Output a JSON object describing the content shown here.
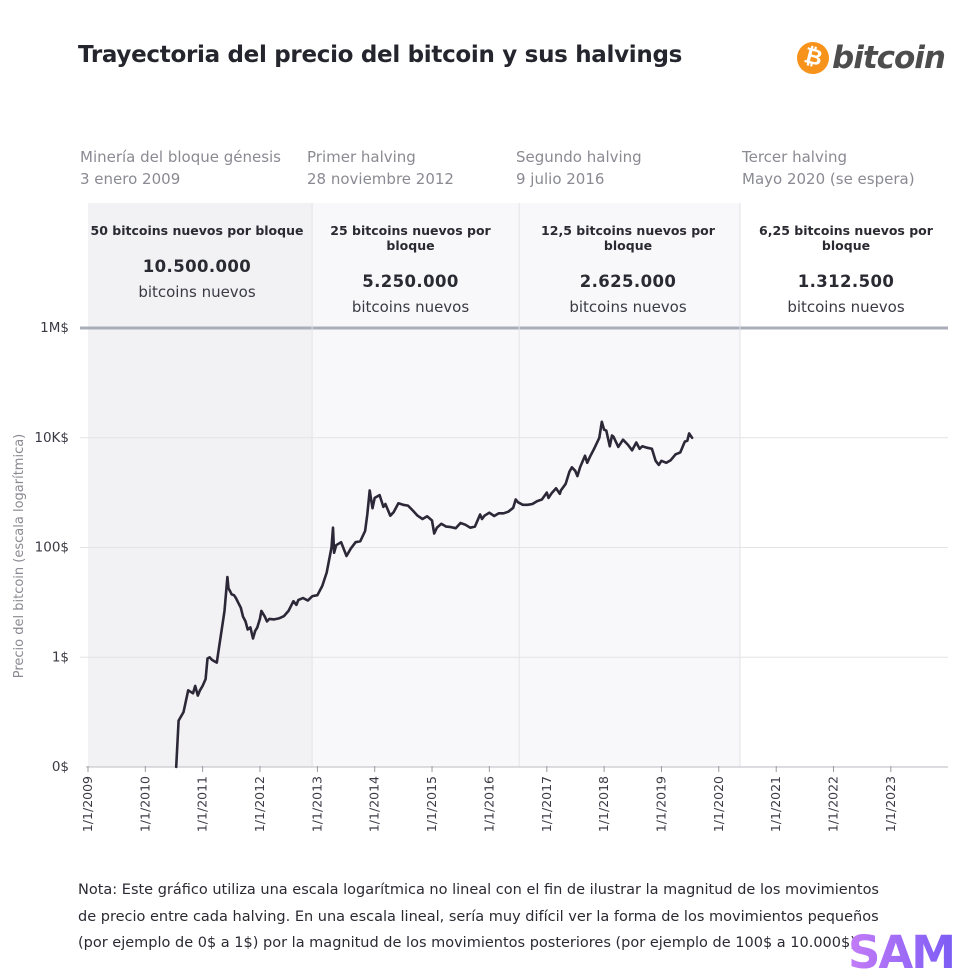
{
  "title": "Trayectoria del precio del bitcoin y sus halvings",
  "brand": {
    "icon_symbol": "₿",
    "wordmark": "bitcoin",
    "icon_color": "#f7931a",
    "icon": "bitcoin-logo-icon"
  },
  "eras": [
    {
      "event": "Minería del bloque génesis",
      "date": "3 enero 2009",
      "reward": "50 bitcoins nuevos por bloque",
      "amount": "10.500.000",
      "unit": "bitcoins nuevos",
      "shaded": true
    },
    {
      "event": "Primer halving",
      "date": "28 noviembre 2012",
      "reward": "25 bitcoins nuevos por bloque",
      "amount": "5.250.000",
      "unit": "bitcoins nuevos",
      "shaded": true
    },
    {
      "event": "Segundo halving",
      "date": "9 julio 2016",
      "reward": "12,5 bitcoins nuevos por bloque",
      "amount": "2.625.000",
      "unit": "bitcoins nuevos",
      "shaded": true
    },
    {
      "event": "Tercer halving",
      "date": "Mayo 2020 (se espera)",
      "reward": "6,25 bitcoins nuevos por bloque",
      "amount": "1.312.500",
      "unit": "bitcoins nuevos",
      "shaded": false
    }
  ],
  "colors": {
    "line": "#2d2838",
    "shade_dark": "#f2f2f4",
    "shade_light": "#f8f8fa",
    "grid": "#e3e3e8",
    "top_rule": "#a9aeba",
    "axis_text": "#8a8a93",
    "sam_logo": "#9b59f5"
  },
  "chart_data": {
    "type": "line",
    "title": "Trayectoria del precio del bitcoin y sus halvings",
    "ylabel": "Precio del bitcoin (escala logarítmica)",
    "xlabel": "",
    "y_scale": "log",
    "y_ticks": [
      {
        "value": 0.01,
        "label": "0$"
      },
      {
        "value": 1,
        "label": "1$"
      },
      {
        "value": 100,
        "label": "100$"
      },
      {
        "value": 10000,
        "label": "10K$"
      },
      {
        "value": 1000000,
        "label": "1M$"
      }
    ],
    "x_range": [
      "2009-01-01",
      "2023-12-31"
    ],
    "x_ticks": [
      "1/1/2009",
      "1/1/2010",
      "1/1/2011",
      "1/1/2012",
      "1/1/2013",
      "1/1/2014",
      "1/1/2015",
      "1/1/2016",
      "1/1/2017",
      "1/1/2018",
      "1/1/2019",
      "1/1/2020",
      "1/1/2021",
      "1/1/2022",
      "1/1/2023"
    ],
    "halving_dates": [
      "2012-11-28",
      "2016-07-09",
      "2020-05-15"
    ],
    "grid": true,
    "legend": "none",
    "series": [
      {
        "points": [
          [
            "2010-07-17",
            0.01
          ],
          [
            "2010-08-01",
            0.07
          ],
          [
            "2010-09-01",
            0.1
          ],
          [
            "2010-10-01",
            0.25
          ],
          [
            "2010-11-01",
            0.22
          ],
          [
            "2010-11-15",
            0.3
          ],
          [
            "2010-12-01",
            0.2
          ],
          [
            "2010-12-15",
            0.25
          ],
          [
            "2011-01-01",
            0.3
          ],
          [
            "2011-01-20",
            0.4
          ],
          [
            "2011-02-01",
            0.95
          ],
          [
            "2011-02-15",
            1.0
          ],
          [
            "2011-03-01",
            0.9
          ],
          [
            "2011-03-15",
            0.85
          ],
          [
            "2011-04-01",
            0.8
          ],
          [
            "2011-04-15",
            1.5
          ],
          [
            "2011-05-01",
            3.0
          ],
          [
            "2011-05-20",
            7.0
          ],
          [
            "2011-06-08",
            29.0
          ],
          [
            "2011-06-15",
            18.0
          ],
          [
            "2011-06-25",
            16.0
          ],
          [
            "2011-07-05",
            14.0
          ],
          [
            "2011-07-20",
            13.5
          ],
          [
            "2011-08-01",
            12.0
          ],
          [
            "2011-08-15",
            10.0
          ],
          [
            "2011-09-01",
            8.0
          ],
          [
            "2011-09-15",
            5.5
          ],
          [
            "2011-10-01",
            4.5
          ],
          [
            "2011-10-15",
            3.2
          ],
          [
            "2011-11-01",
            3.5
          ],
          [
            "2011-11-18",
            2.2
          ],
          [
            "2011-12-01",
            3.0
          ],
          [
            "2011-12-15",
            3.5
          ],
          [
            "2012-01-01",
            5.0
          ],
          [
            "2012-01-10",
            7.0
          ],
          [
            "2012-02-01",
            5.5
          ],
          [
            "2012-02-15",
            4.5
          ],
          [
            "2012-03-01",
            5.0
          ],
          [
            "2012-04-01",
            4.9
          ],
          [
            "2012-05-01",
            5.1
          ],
          [
            "2012-06-01",
            5.6
          ],
          [
            "2012-07-01",
            7.0
          ],
          [
            "2012-08-01",
            10.5
          ],
          [
            "2012-08-20",
            9.0
          ],
          [
            "2012-09-01",
            11.0
          ],
          [
            "2012-10-01",
            12.0
          ],
          [
            "2012-11-01",
            10.8
          ],
          [
            "2012-12-01",
            13.0
          ],
          [
            "2013-01-01",
            13.5
          ],
          [
            "2013-02-01",
            20.0
          ],
          [
            "2013-03-01",
            35.0
          ],
          [
            "2013-04-01",
            100.0
          ],
          [
            "2013-04-10",
            230.0
          ],
          [
            "2013-04-17",
            80.0
          ],
          [
            "2013-05-01",
            110.0
          ],
          [
            "2013-06-01",
            125.0
          ],
          [
            "2013-07-05",
            70.0
          ],
          [
            "2013-08-01",
            95.0
          ],
          [
            "2013-09-01",
            125.0
          ],
          [
            "2013-10-01",
            130.0
          ],
          [
            "2013-11-01",
            200.0
          ],
          [
            "2013-11-15",
            400.0
          ],
          [
            "2013-11-30",
            1100.0
          ],
          [
            "2013-12-18",
            520.0
          ],
          [
            "2014-01-01",
            800.0
          ],
          [
            "2014-02-01",
            900.0
          ],
          [
            "2014-02-25",
            550.0
          ],
          [
            "2014-03-10",
            620.0
          ],
          [
            "2014-04-10",
            380.0
          ],
          [
            "2014-05-01",
            440.0
          ],
          [
            "2014-06-01",
            640.0
          ],
          [
            "2014-07-01",
            600.0
          ],
          [
            "2014-08-01",
            580.0
          ],
          [
            "2014-09-01",
            470.0
          ],
          [
            "2014-10-01",
            380.0
          ],
          [
            "2014-11-01",
            330.0
          ],
          [
            "2014-12-01",
            370.0
          ],
          [
            "2015-01-01",
            310.0
          ],
          [
            "2015-01-15",
            180.0
          ],
          [
            "2015-02-01",
            230.0
          ],
          [
            "2015-03-01",
            270.0
          ],
          [
            "2015-04-01",
            240.0
          ],
          [
            "2015-05-01",
            235.0
          ],
          [
            "2015-06-01",
            225.0
          ],
          [
            "2015-07-01",
            280.0
          ],
          [
            "2015-08-01",
            260.0
          ],
          [
            "2015-09-01",
            230.0
          ],
          [
            "2015-10-01",
            240.0
          ],
          [
            "2015-11-03",
            400.0
          ],
          [
            "2015-11-15",
            330.0
          ],
          [
            "2015-12-01",
            380.0
          ],
          [
            "2016-01-01",
            430.0
          ],
          [
            "2016-02-01",
            375.0
          ],
          [
            "2016-03-01",
            420.0
          ],
          [
            "2016-04-01",
            420.0
          ],
          [
            "2016-05-01",
            450.0
          ],
          [
            "2016-06-01",
            530.0
          ],
          [
            "2016-06-17",
            750.0
          ],
          [
            "2016-07-01",
            670.0
          ],
          [
            "2016-08-01",
            600.0
          ],
          [
            "2016-09-01",
            600.0
          ],
          [
            "2016-10-01",
            620.0
          ],
          [
            "2016-11-01",
            700.0
          ],
          [
            "2016-12-01",
            750.0
          ],
          [
            "2017-01-01",
            1000.0
          ],
          [
            "2017-01-12",
            800.0
          ],
          [
            "2017-02-01",
            980.0
          ],
          [
            "2017-03-01",
            1200.0
          ],
          [
            "2017-03-25",
            950.0
          ],
          [
            "2017-04-01",
            1100.0
          ],
          [
            "2017-05-01",
            1450.0
          ],
          [
            "2017-05-25",
            2400.0
          ],
          [
            "2017-06-10",
            2900.0
          ],
          [
            "2017-07-01",
            2500.0
          ],
          [
            "2017-07-15",
            2000.0
          ],
          [
            "2017-08-01",
            2900.0
          ],
          [
            "2017-09-01",
            4700.0
          ],
          [
            "2017-09-15",
            3500.0
          ],
          [
            "2017-10-01",
            4400.0
          ],
          [
            "2017-11-01",
            6500.0
          ],
          [
            "2017-12-01",
            10000.0
          ],
          [
            "2017-12-17",
            19500.0
          ],
          [
            "2018-01-01",
            14000.0
          ],
          [
            "2018-01-15",
            13500.0
          ],
          [
            "2018-02-06",
            7000.0
          ],
          [
            "2018-02-20",
            11000.0
          ],
          [
            "2018-03-01",
            10500.0
          ],
          [
            "2018-04-01",
            6800.0
          ],
          [
            "2018-05-01",
            9200.0
          ],
          [
            "2018-06-01",
            7500.0
          ],
          [
            "2018-06-28",
            5900.0
          ],
          [
            "2018-07-25",
            8200.0
          ],
          [
            "2018-08-15",
            6300.0
          ],
          [
            "2018-09-01",
            7000.0
          ],
          [
            "2018-10-01",
            6600.0
          ],
          [
            "2018-11-01",
            6300.0
          ],
          [
            "2018-11-25",
            3800.0
          ],
          [
            "2018-12-15",
            3200.0
          ],
          [
            "2019-01-01",
            3800.0
          ],
          [
            "2019-02-01",
            3500.0
          ],
          [
            "2019-03-01",
            3900.0
          ],
          [
            "2019-04-01",
            5000.0
          ],
          [
            "2019-05-01",
            5400.0
          ],
          [
            "2019-05-30",
            8500.0
          ],
          [
            "2019-06-15",
            8800.0
          ],
          [
            "2019-06-26",
            12000.0
          ],
          [
            "2019-07-15",
            10000.0
          ]
        ]
      }
    ]
  },
  "note": [
    "Nota: Este gráfico utiliza una escala logarítmica no lineal con el fin de ilustrar la magnitud de los movimientos",
    "de precio entre cada halving. En una escala lineal, sería muy difícil ver la forma de los movimientos pequeños",
    "(por ejemplo de 0$ a 1$) por la magnitud de los movimientos posteriores (por ejemplo de 100$ a 10.000$)."
  ],
  "watermark": "SAM"
}
